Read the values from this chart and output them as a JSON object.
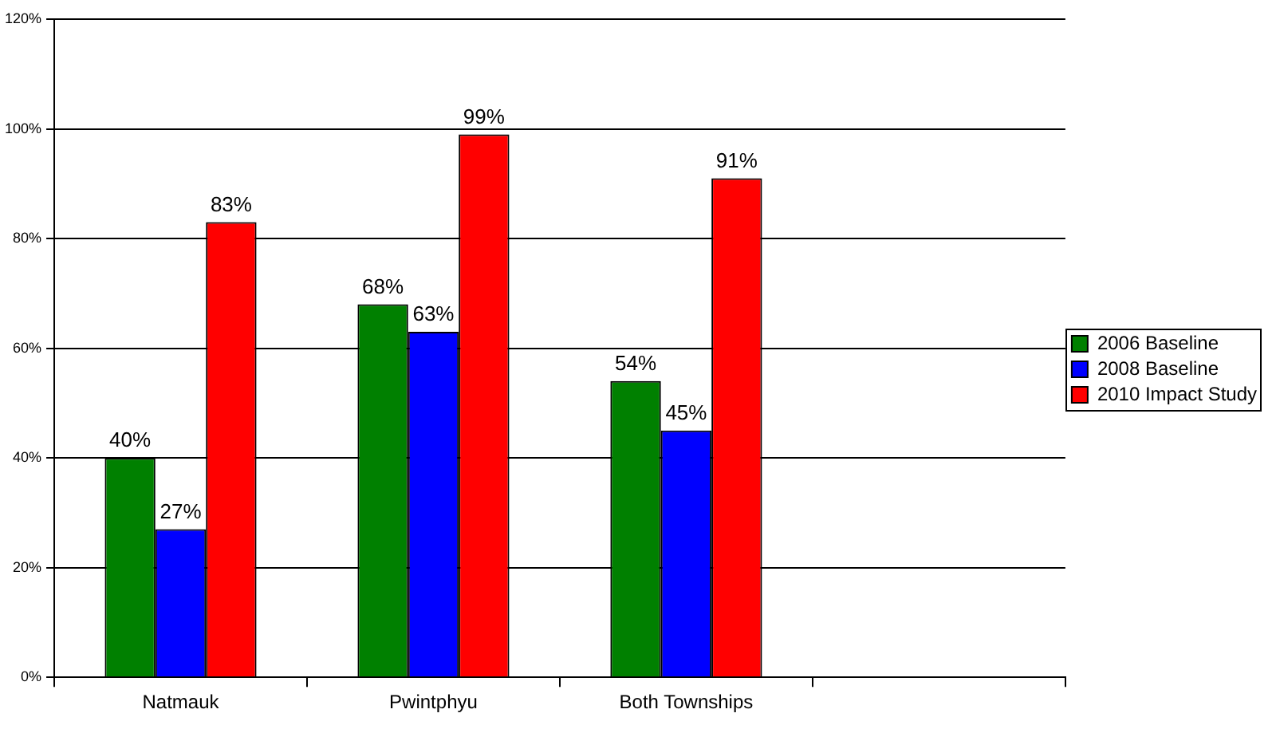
{
  "chart_data": {
    "type": "bar",
    "categories": [
      "Natmauk",
      "Pwintphyu",
      "Both Townships",
      null
    ],
    "series": [
      {
        "name": "2006 Baseline",
        "color": "#008000",
        "values": [
          40,
          68,
          54,
          null
        ],
        "value_labels": [
          "40%",
          "68%",
          "54%",
          null
        ]
      },
      {
        "name": "2008 Baseline",
        "color": "#0000ff",
        "values": [
          27,
          63,
          45,
          null
        ],
        "value_labels": [
          "27%",
          "63%",
          "45%",
          null
        ]
      },
      {
        "name": "2010 Impact Study",
        "color": "#ff0000",
        "values": [
          83,
          99,
          91,
          null
        ],
        "value_labels": [
          "83%",
          "99%",
          "91%",
          null
        ]
      }
    ],
    "ylim": [
      0,
      120
    ],
    "yticks": [
      {
        "value": 0,
        "label": "0%"
      },
      {
        "value": 20,
        "label": "20%"
      },
      {
        "value": 40,
        "label": "40%"
      },
      {
        "value": 60,
        "label": "60%"
      },
      {
        "value": 80,
        "label": "80%"
      },
      {
        "value": 100,
        "label": "100%"
      },
      {
        "value": 120,
        "label": "120%"
      }
    ],
    "grid": "y",
    "legend": "right"
  }
}
